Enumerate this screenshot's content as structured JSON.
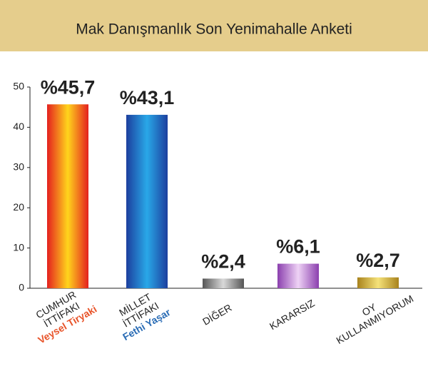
{
  "chart_data": {
    "type": "bar",
    "title": "Mak Danışmanlık Son Yenimahalle Anketi",
    "categories": [
      [
        "CUMHUR",
        "İTTİFAKI"
      ],
      [
        "MİLLET",
        "İTTİFAKI"
      ],
      [
        "DİĞER"
      ],
      [
        "KARARSIZ"
      ],
      [
        "OY",
        "KULLANMIYORUM"
      ]
    ],
    "candidates": [
      "Veysel Tiryaki",
      "Fethi Yaşar",
      null,
      null,
      null
    ],
    "candidate_colors": [
      "#e8542a",
      "#2a6cb5",
      null,
      null,
      null
    ],
    "values": [
      45.7,
      43.1,
      2.4,
      6.1,
      2.7
    ],
    "value_labels": [
      "%45,7",
      "%43,1",
      "%2,4",
      "%6,1",
      "%2,7"
    ],
    "colors": [
      [
        "#e4201f",
        "#ffd51c"
      ],
      [
        "#1c3f9e",
        "#29a8e8"
      ],
      [
        "#555555",
        "#d9d9d9"
      ],
      [
        "#8b3fae",
        "#eed2f5"
      ],
      [
        "#a8821c",
        "#f5e27a"
      ]
    ],
    "ylim": [
      0,
      50
    ],
    "yticks": [
      0,
      10,
      20,
      30,
      40,
      50
    ]
  }
}
